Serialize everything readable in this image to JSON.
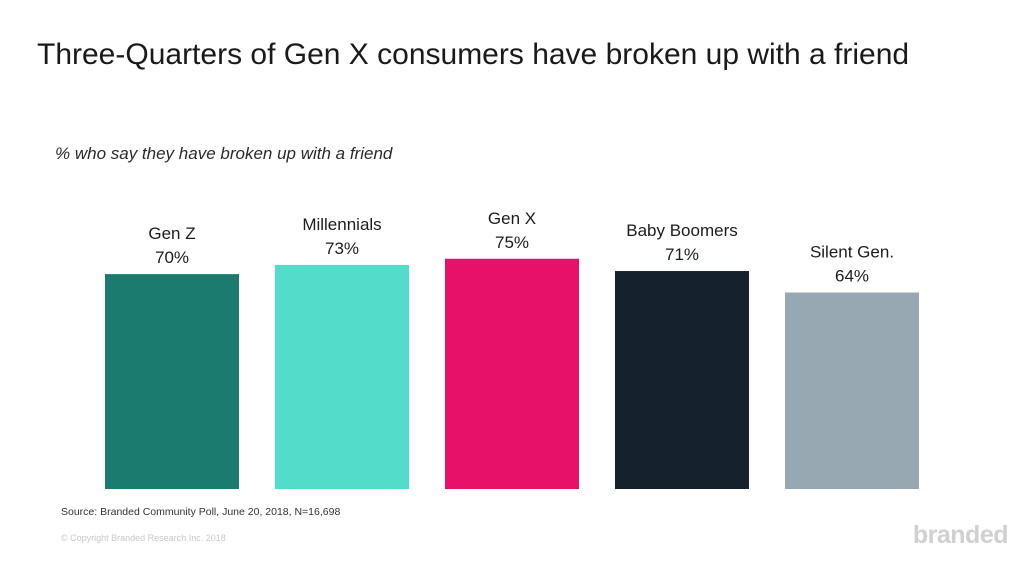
{
  "header": {
    "title": "Three-Quarters of Gen X consumers have broken up with a friend",
    "subtitle": "% who say they have broken up with a friend"
  },
  "footer": {
    "source": "Source: Branded Community Poll, June 20, 2018, N=16,698",
    "copyright": "© Copyright Branded Research Inc. 2018",
    "logo_text": "branded"
  },
  "colors": {
    "gen_z": "#1b7b6f",
    "millennials": "#54dccb",
    "gen_x": "#e8116a",
    "baby_boomers": "#15222d",
    "silent_gen": "#97a8b2",
    "label_text": "#1c1c1c"
  },
  "chart_data": {
    "type": "bar",
    "title": "Three-Quarters of Gen X consumers have broken up with a friend",
    "subtitle": "% who say they have broken up with a friend",
    "categories": [
      "Gen Z",
      "Millennials",
      "Gen X",
      "Baby Boomers",
      "Silent Gen."
    ],
    "values": [
      70,
      73,
      75,
      71,
      64
    ],
    "value_labels": [
      "70%",
      "73%",
      "75%",
      "71%",
      "64%"
    ],
    "bar_colors": [
      "#1b7b6f",
      "#54dccb",
      "#e8116a",
      "#15222d",
      "#97a8b2"
    ],
    "xlabel": "",
    "ylabel": "",
    "unit": "%",
    "ylim": [
      0,
      100
    ],
    "grid": false,
    "legend": "none",
    "label_position": "above-bar"
  }
}
